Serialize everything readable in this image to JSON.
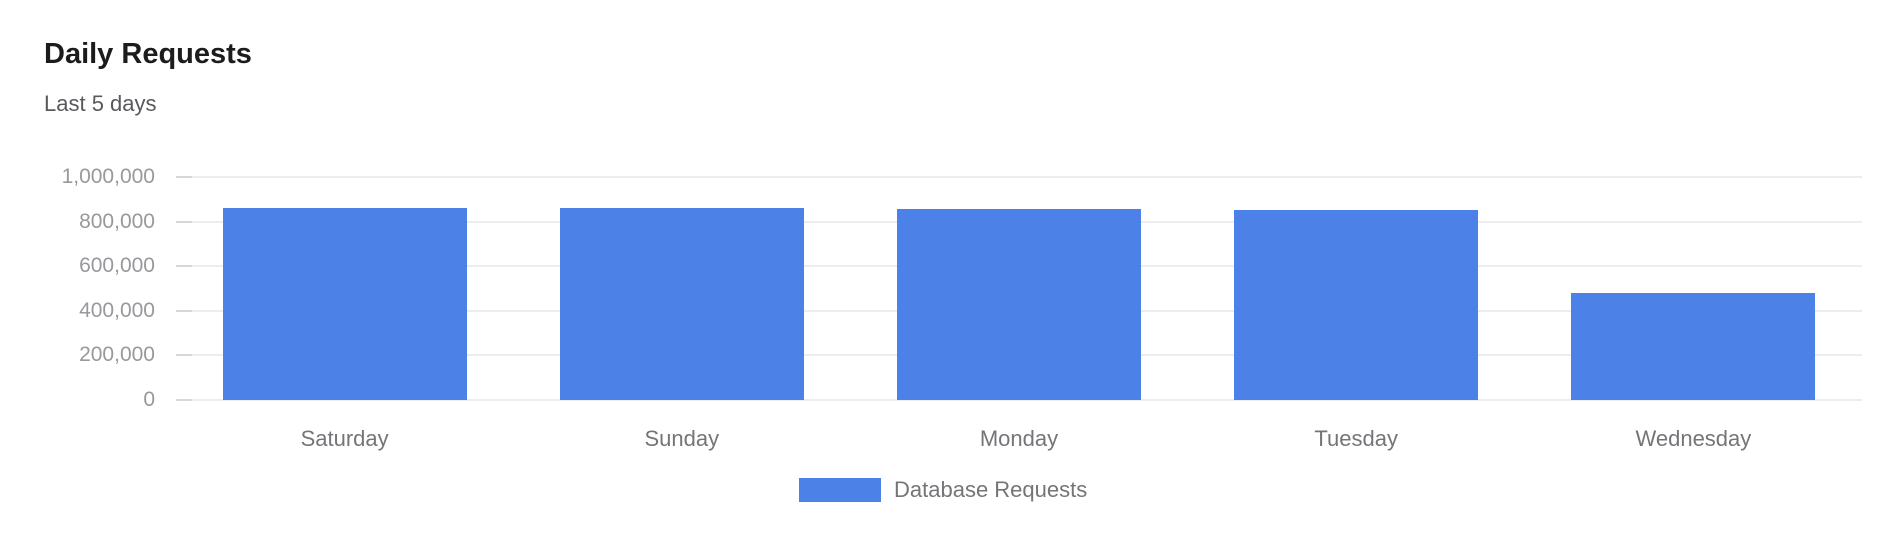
{
  "colors": {
    "accent": "#4C81E8",
    "title": "#1c1c1e",
    "subtitle": "#58595d",
    "ticklabel": "#98989d",
    "axislabel": "#747578",
    "gridline": "#ededed",
    "tickmark": "#d6d7d9",
    "background": "#ffffff"
  },
  "chart_data": {
    "type": "bar",
    "title": "Daily Requests",
    "subtitle": "Last 5 days",
    "categories": [
      "Saturday",
      "Sunday",
      "Monday",
      "Tuesday",
      "Wednesday"
    ],
    "series": [
      {
        "name": "Database Requests",
        "values": [
          863000,
          861000,
          858000,
          854000,
          480000
        ]
      }
    ],
    "xlabel": "",
    "ylabel": "",
    "ylim": [
      0,
      1000000
    ],
    "yticks": [
      0,
      200000,
      400000,
      600000,
      800000,
      1000000
    ],
    "ytick_labels": [
      "0",
      "200,000",
      "400,000",
      "600,000",
      "800,000",
      "1,000,000"
    ],
    "grid": true,
    "legend_position": "bottom"
  }
}
